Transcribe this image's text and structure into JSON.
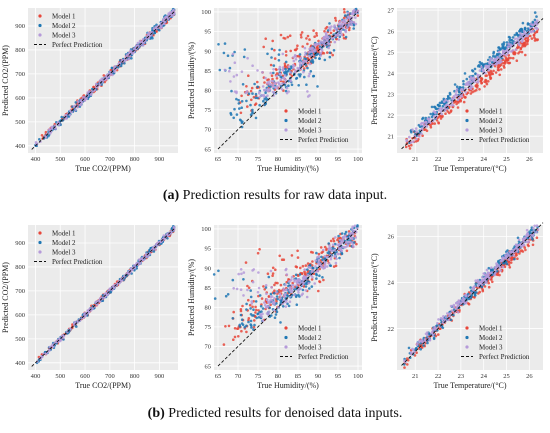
{
  "captions": [
    {
      "letter": "(a)",
      "text": " Prediction results for raw data input."
    },
    {
      "letter": "(b)",
      "text": " Predicted results for denoised data inputs."
    }
  ],
  "colors": {
    "model_1": "#e8463a",
    "model_2": "#1f77b4",
    "model_3": "#b59ad9",
    "perfect": "#111111",
    "panel_bg": "#ebebeb",
    "grid": "#ffffff"
  },
  "chart_data": [
    {
      "type": "scatter",
      "panel": "a",
      "variable": "co2",
      "xlabel": "True CO2/(PPM)",
      "ylabel": "Predicted CO2/(PPM)",
      "xlim": [
        370,
        975
      ],
      "ylim": [
        370,
        975
      ],
      "xticks": [
        400,
        500,
        600,
        700,
        800,
        900
      ],
      "yticks": [
        400,
        500,
        600,
        700,
        800,
        900
      ],
      "legend_loc": "upper-left",
      "grid": true,
      "series": [
        {
          "name": "Model 1",
          "x_range": [
            400,
            960
          ],
          "spread": 10,
          "bias": [
            [
              400,
              8
            ],
            [
              700,
              2
            ],
            [
              950,
              -5
            ]
          ]
        },
        {
          "name": "Model 2",
          "x_range": [
            400,
            960
          ],
          "spread": 12,
          "bias": [
            [
              400,
              0
            ],
            [
              700,
              -5
            ],
            [
              950,
              0
            ]
          ]
        },
        {
          "name": "Model 3",
          "x_range": [
            400,
            960
          ],
          "spread": 9,
          "bias": [
            [
              400,
              2
            ],
            [
              700,
              0
            ],
            [
              950,
              2
            ]
          ]
        }
      ],
      "reference": {
        "name": "Perfect Prediction",
        "from": [
          385,
          385
        ],
        "to": [
          960,
          960
        ]
      }
    },
    {
      "type": "scatter",
      "panel": "a",
      "variable": "humidity",
      "xlabel": "True Humidity/(%)",
      "ylabel": "Predicted Humidity/(%)",
      "xlim": [
        64,
        101
      ],
      "ylim": [
        64,
        101
      ],
      "xticks": [
        65,
        70,
        75,
        80,
        85,
        90,
        95,
        100
      ],
      "yticks": [
        65,
        70,
        75,
        80,
        85,
        90,
        95,
        100
      ],
      "legend_loc": "lower-right",
      "grid": true,
      "series": [
        {
          "name": "Model 1",
          "x_range": [
            70,
            100
          ],
          "spread": 2.2,
          "bias": [
            [
              70,
              8
            ],
            [
              85,
              2
            ],
            [
              100,
              0
            ]
          ],
          "outlier_band": [
            88,
            96
          ]
        },
        {
          "name": "Model 2",
          "x_range": [
            68,
            100
          ],
          "spread": 2.5,
          "bias": [
            [
              70,
              6
            ],
            [
              85,
              0
            ],
            [
              100,
              0
            ]
          ],
          "outlier_band": [
            76,
            92
          ]
        },
        {
          "name": "Model 3",
          "x_range": [
            75,
            100
          ],
          "spread": 1.8,
          "bias": [
            [
              75,
              5
            ],
            [
              85,
              2
            ],
            [
              100,
              0
            ]
          ],
          "outlier_band": [
            78,
            90
          ]
        }
      ],
      "reference": {
        "name": "Perfect Prediction",
        "from": [
          65,
          65
        ],
        "to": [
          100,
          100
        ]
      }
    },
    {
      "type": "scatter",
      "panel": "a",
      "variable": "temperature",
      "xlabel": "True Temperature/(°C)",
      "ylabel": "Predicted Temperature/(°C)",
      "xlim": [
        20.2,
        26.6
      ],
      "ylim": [
        20.2,
        27.1
      ],
      "xticks": [
        21,
        22,
        23,
        24,
        25,
        26
      ],
      "yticks": [
        21,
        22,
        23,
        24,
        25,
        26,
        27
      ],
      "legend_loc": "lower-right",
      "grid": true,
      "series": [
        {
          "name": "Model 1",
          "x_range": [
            20.5,
            26.4
          ],
          "spread": 0.22,
          "bias": [
            [
              20.5,
              0
            ],
            [
              23.5,
              -0.35
            ],
            [
              26.4,
              -0.6
            ]
          ]
        },
        {
          "name": "Model 2",
          "x_range": [
            20.5,
            26.4
          ],
          "spread": 0.22,
          "bias": [
            [
              20.5,
              0.3
            ],
            [
              23.5,
              0.4
            ],
            [
              26.4,
              0.3
            ]
          ]
        },
        {
          "name": "Model 3",
          "x_range": [
            20.5,
            26.4
          ],
          "spread": 0.2,
          "bias": [
            [
              20.5,
              0.1
            ],
            [
              23.5,
              0.1
            ],
            [
              26.4,
              0
            ]
          ]
        }
      ],
      "reference": {
        "name": "Perfect Prediction",
        "from": [
          20.4,
          20.4
        ],
        "to": [
          26.6,
          26.6
        ]
      }
    },
    {
      "type": "scatter",
      "panel": "b",
      "variable": "co2",
      "xlabel": "True CO2/(PPM)",
      "ylabel": "Predicted CO2/(PPM)",
      "xlim": [
        370,
        975
      ],
      "ylim": [
        370,
        975
      ],
      "xticks": [
        400,
        500,
        600,
        700,
        800,
        900
      ],
      "yticks": [
        400,
        500,
        600,
        700,
        800,
        900
      ],
      "legend_loc": "upper-left",
      "grid": true,
      "series": [
        {
          "name": "Model 1",
          "x_range": [
            400,
            960
          ],
          "spread": 7,
          "bias": [
            [
              400,
              2
            ],
            [
              700,
              0
            ],
            [
              950,
              -2
            ]
          ]
        },
        {
          "name": "Model 2",
          "x_range": [
            400,
            960
          ],
          "spread": 8,
          "bias": [
            [
              400,
              0
            ],
            [
              700,
              -2
            ],
            [
              950,
              0
            ]
          ]
        },
        {
          "name": "Model 3",
          "x_range": [
            400,
            960
          ],
          "spread": 6,
          "bias": [
            [
              400,
              1
            ],
            [
              700,
              0
            ],
            [
              950,
              1
            ]
          ]
        }
      ],
      "reference": {
        "name": "Perfect Prediction",
        "from": [
          385,
          385
        ],
        "to": [
          960,
          960
        ]
      }
    },
    {
      "type": "scatter",
      "panel": "b",
      "variable": "humidity",
      "xlabel": "True Humidity/(%)",
      "ylabel": "Predicted Humidity/(%)",
      "xlim": [
        64,
        101
      ],
      "ylim": [
        64,
        101
      ],
      "xticks": [
        65,
        70,
        75,
        80,
        85,
        90,
        95,
        100
      ],
      "yticks": [
        65,
        70,
        75,
        80,
        85,
        90,
        95,
        100
      ],
      "legend_loc": "lower-right",
      "grid": true,
      "series": [
        {
          "name": "Model 1",
          "x_range": [
            66,
            100
          ],
          "spread": 2.4,
          "bias": [
            [
              66,
              10
            ],
            [
              85,
              2
            ],
            [
              100,
              0
            ]
          ],
          "outlier_band": [
            84,
            95
          ]
        },
        {
          "name": "Model 2",
          "x_range": [
            70,
            100
          ],
          "spread": 2.2,
          "bias": [
            [
              70,
              5
            ],
            [
              85,
              0
            ],
            [
              100,
              0
            ]
          ],
          "outlier_band": [
            76,
            90
          ]
        },
        {
          "name": "Model 3",
          "x_range": [
            75,
            100
          ],
          "spread": 1.8,
          "bias": [
            [
              75,
              4
            ],
            [
              85,
              1
            ],
            [
              100,
              0
            ]
          ],
          "outlier_band": [
            80,
            90
          ]
        }
      ],
      "reference": {
        "name": "Perfect Prediction",
        "from": [
          65,
          65
        ],
        "to": [
          100,
          100
        ]
      }
    },
    {
      "type": "scatter",
      "panel": "b",
      "variable": "temperature",
      "xlabel": "True Temperature/(°C)",
      "ylabel": "Predicted Temperature/(°C)",
      "xlim": [
        20.2,
        26.6
      ],
      "ylim": [
        20.2,
        26.5
      ],
      "xticks": [
        21,
        22,
        23,
        24,
        25,
        26
      ],
      "yticks": [
        22,
        24,
        26
      ],
      "legend_loc": "lower-right",
      "grid": true,
      "series": [
        {
          "name": "Model 1",
          "x_range": [
            20.5,
            26.4
          ],
          "spread": 0.2,
          "bias": [
            [
              20.5,
              0
            ],
            [
              23.5,
              0
            ],
            [
              26.4,
              -0.3
            ]
          ]
        },
        {
          "name": "Model 2",
          "x_range": [
            20.5,
            26.4
          ],
          "spread": 0.2,
          "bias": [
            [
              20.5,
              0.1
            ],
            [
              23.5,
              0.1
            ],
            [
              26.4,
              0.1
            ]
          ]
        },
        {
          "name": "Model 3",
          "x_range": [
            20.5,
            26.4
          ],
          "spread": 0.18,
          "bias": [
            [
              20.5,
              0.1
            ],
            [
              23.5,
              0.2
            ],
            [
              26.4,
              0
            ]
          ]
        }
      ],
      "reference": {
        "name": "Perfect Prediction",
        "from": [
          20.4,
          20.4
        ],
        "to": [
          26.6,
          26.6
        ]
      }
    }
  ]
}
